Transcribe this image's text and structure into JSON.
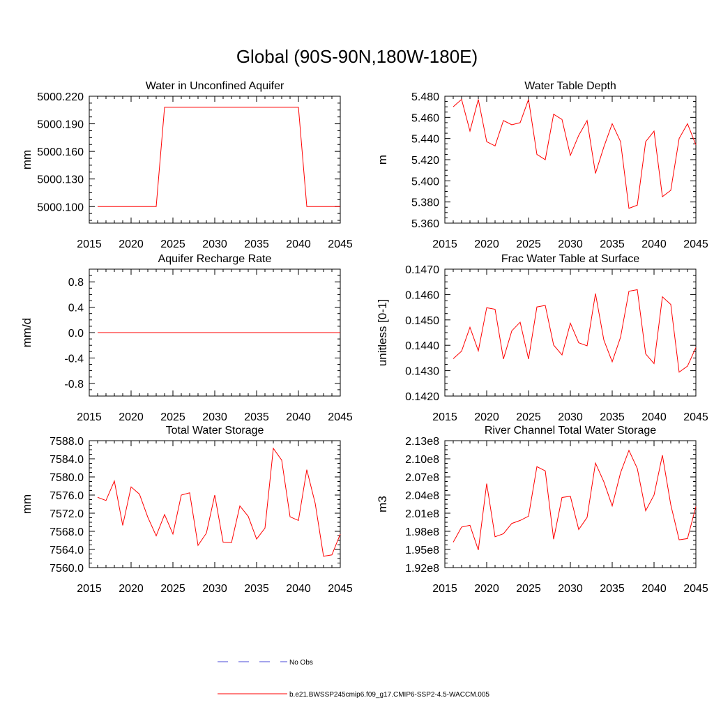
{
  "figure": {
    "title": "Global (90S-90N,180W-180E)"
  },
  "legend": {
    "no_obs_label": "No Obs",
    "no_obs_color": "#4a4ad8",
    "case_label": "b.e21.BWSSP245cmip6.f09_g17.CMIP6-SSP2-4.5-WACCM.005",
    "case_color": "#ff0000"
  },
  "chart_data": [
    {
      "id": "unconfined-aquifer",
      "type": "line",
      "title": "Water in Unconfined Aquifer",
      "xlabel": "",
      "ylabel": "mm",
      "xlim": [
        2015,
        2045
      ],
      "ylim": [
        5000.082,
        5000.22
      ],
      "yticks": [
        5000.1,
        5000.13,
        5000.16,
        5000.19,
        5000.22
      ],
      "ytick_labels": [
        "5000.100",
        "5000.130",
        "5000.160",
        "5000.190",
        "5000.220"
      ],
      "xticks": [
        2015,
        2020,
        2025,
        2030,
        2035,
        2040,
        2045
      ],
      "xtick_labels": [
        "2015",
        "2020",
        "2025",
        "2030",
        "2035",
        "2040",
        "2045"
      ],
      "color": "#ff0000",
      "x": [
        2016,
        2017,
        2018,
        2019,
        2020,
        2021,
        2022,
        2023,
        2024,
        2025,
        2026,
        2027,
        2028,
        2029,
        2030,
        2031,
        2032,
        2033,
        2034,
        2035,
        2036,
        2037,
        2038,
        2039,
        2040,
        2041,
        2042,
        2043,
        2044,
        2045
      ],
      "y": [
        5000.1,
        5000.1,
        5000.1,
        5000.1,
        5000.1,
        5000.1,
        5000.1,
        5000.1,
        5000.208,
        5000.208,
        5000.208,
        5000.208,
        5000.208,
        5000.208,
        5000.208,
        5000.208,
        5000.208,
        5000.208,
        5000.208,
        5000.208,
        5000.208,
        5000.208,
        5000.208,
        5000.208,
        5000.208,
        5000.1,
        5000.1,
        5000.1,
        5000.1,
        5000.1
      ]
    },
    {
      "id": "water-table-depth",
      "type": "line",
      "title": "Water Table Depth",
      "xlabel": "",
      "ylabel": "m",
      "xlim": [
        2015,
        2045
      ],
      "ylim": [
        5.36,
        5.48
      ],
      "yticks": [
        5.36,
        5.38,
        5.4,
        5.42,
        5.44,
        5.46,
        5.48
      ],
      "ytick_labels": [
        "5.360",
        "5.380",
        "5.400",
        "5.420",
        "5.440",
        "5.460",
        "5.480"
      ],
      "xticks": [
        2015,
        2020,
        2025,
        2030,
        2035,
        2040,
        2045
      ],
      "xtick_labels": [
        "2015",
        "2020",
        "2025",
        "2030",
        "2035",
        "2040",
        "2045"
      ],
      "color": "#ff0000",
      "x": [
        2016,
        2017,
        2018,
        2019,
        2020,
        2021,
        2022,
        2023,
        2024,
        2025,
        2026,
        2027,
        2028,
        2029,
        2030,
        2031,
        2032,
        2033,
        2034,
        2035,
        2036,
        2037,
        2038,
        2039,
        2040,
        2041,
        2042,
        2043,
        2044,
        2045
      ],
      "y": [
        5.47,
        5.477,
        5.447,
        5.477,
        5.437,
        5.433,
        5.457,
        5.453,
        5.455,
        5.477,
        5.425,
        5.42,
        5.463,
        5.458,
        5.424,
        5.443,
        5.457,
        5.407,
        5.432,
        5.454,
        5.437,
        5.374,
        5.377,
        5.437,
        5.447,
        5.385,
        5.391,
        5.44,
        5.454,
        5.434
      ]
    },
    {
      "id": "aquifer-recharge",
      "type": "line",
      "title": "Aquifer Recharge Rate",
      "xlabel": "",
      "ylabel": "mm/d",
      "xlim": [
        2015,
        2045
      ],
      "ylim": [
        -1.0,
        1.0
      ],
      "yticks": [
        -0.8,
        -0.4,
        0.0,
        0.4,
        0.8
      ],
      "ytick_labels": [
        "-0.8",
        "-0.4",
        "0.0",
        "0.4",
        "0.8"
      ],
      "xticks": [
        2015,
        2020,
        2025,
        2030,
        2035,
        2040,
        2045
      ],
      "xtick_labels": [
        "2015",
        "2020",
        "2025",
        "2030",
        "2035",
        "2040",
        "2045"
      ],
      "color": "#ff0000",
      "x": [
        2016,
        2017,
        2018,
        2019,
        2020,
        2021,
        2022,
        2023,
        2024,
        2025,
        2026,
        2027,
        2028,
        2029,
        2030,
        2031,
        2032,
        2033,
        2034,
        2035,
        2036,
        2037,
        2038,
        2039,
        2040,
        2041,
        2042,
        2043,
        2044,
        2045
      ],
      "y": [
        0,
        0,
        0,
        0,
        0,
        0,
        0,
        0,
        0,
        0,
        0,
        0,
        0,
        0,
        0,
        0,
        0,
        0,
        0,
        0,
        0,
        0,
        0,
        0,
        0,
        0,
        0,
        0,
        0,
        0
      ]
    },
    {
      "id": "frac-water-table",
      "type": "line",
      "title": "Frac Water Table at Surface",
      "xlabel": "",
      "ylabel": "unitless [0-1]",
      "xlim": [
        2015,
        2045
      ],
      "ylim": [
        0.142,
        0.147
      ],
      "yticks": [
        0.142,
        0.143,
        0.144,
        0.145,
        0.146,
        0.147
      ],
      "ytick_labels": [
        "0.1420",
        "0.1430",
        "0.1440",
        "0.1450",
        "0.1460",
        "0.1470"
      ],
      "xticks": [
        2015,
        2020,
        2025,
        2030,
        2035,
        2040,
        2045
      ],
      "xtick_labels": [
        "2015",
        "2020",
        "2025",
        "2030",
        "2035",
        "2040",
        "2045"
      ],
      "color": "#ff0000",
      "x": [
        2016,
        2017,
        2018,
        2019,
        2020,
        2021,
        2022,
        2023,
        2024,
        2025,
        2026,
        2027,
        2028,
        2029,
        2030,
        2031,
        2032,
        2033,
        2034,
        2035,
        2036,
        2037,
        2038,
        2039,
        2040,
        2041,
        2042,
        2043,
        2044,
        2045
      ],
      "y": [
        0.14347,
        0.14377,
        0.14471,
        0.14378,
        0.14548,
        0.14542,
        0.14346,
        0.14457,
        0.14491,
        0.14346,
        0.14551,
        0.14557,
        0.14401,
        0.14362,
        0.14487,
        0.1441,
        0.14398,
        0.14604,
        0.14421,
        0.14335,
        0.14432,
        0.14613,
        0.14619,
        0.14366,
        0.14328,
        0.14591,
        0.14561,
        0.14294,
        0.14318,
        0.14391
      ]
    },
    {
      "id": "total-water-storage",
      "type": "line",
      "title": "Total Water Storage",
      "xlabel": "",
      "ylabel": "mm",
      "xlim": [
        2015,
        2045
      ],
      "ylim": [
        7560.0,
        7588.0
      ],
      "yticks": [
        7560,
        7564,
        7568,
        7572,
        7576,
        7580,
        7584,
        7588
      ],
      "ytick_labels": [
        "7560.0",
        "7564.0",
        "7568.0",
        "7572.0",
        "7576.0",
        "7580.0",
        "7584.0",
        "7588.0"
      ],
      "xticks": [
        2015,
        2020,
        2025,
        2030,
        2035,
        2040,
        2045
      ],
      "xtick_labels": [
        "2015",
        "2020",
        "2025",
        "2030",
        "2035",
        "2040",
        "2045"
      ],
      "color": "#ff0000",
      "x": [
        2016,
        2017,
        2018,
        2019,
        2020,
        2021,
        2022,
        2023,
        2024,
        2025,
        2026,
        2027,
        2028,
        2029,
        2030,
        2031,
        2032,
        2033,
        2034,
        2035,
        2036,
        2037,
        2038,
        2039,
        2040,
        2041,
        2042,
        2043,
        2044,
        2045
      ],
      "y": [
        7575.5,
        7574.8,
        7579.1,
        7569.3,
        7577.8,
        7576.2,
        7571.1,
        7567.0,
        7571.7,
        7567.4,
        7576.0,
        7576.5,
        7564.9,
        7567.6,
        7576.0,
        7565.6,
        7565.5,
        7573.6,
        7571.3,
        7566.3,
        7568.7,
        7586.3,
        7583.7,
        7571.2,
        7570.4,
        7581.6,
        7574.2,
        7562.5,
        7562.8,
        7567.4
      ]
    },
    {
      "id": "river-channel-storage",
      "type": "line",
      "title": "River Channel Total Water Storage",
      "xlabel": "",
      "ylabel": "m3",
      "xlim": [
        2015,
        2045
      ],
      "ylim": [
        192000000.0,
        213000000.0
      ],
      "yticks": [
        192000000.0,
        195000000.0,
        198000000.0,
        201000000.0,
        204000000.0,
        207000000.0,
        210000000.0,
        213000000.0
      ],
      "ytick_labels": [
        "1.92e8",
        "1.95e8",
        "1.98e8",
        "2.01e8",
        "2.04e8",
        "2.07e8",
        "2.10e8",
        "2.13e8"
      ],
      "xticks": [
        2015,
        2020,
        2025,
        2030,
        2035,
        2040,
        2045
      ],
      "xtick_labels": [
        "2015",
        "2020",
        "2025",
        "2030",
        "2035",
        "2040",
        "2045"
      ],
      "color": "#ff0000",
      "x": [
        2016,
        2017,
        2018,
        2019,
        2020,
        2021,
        2022,
        2023,
        2024,
        2025,
        2026,
        2027,
        2028,
        2029,
        2030,
        2031,
        2032,
        2033,
        2034,
        2035,
        2036,
        2037,
        2038,
        2039,
        2040,
        2041,
        2042,
        2043,
        2044,
        2045
      ],
      "y": [
        196200000.0,
        198700000.0,
        199000000.0,
        194900000.0,
        205900000.0,
        197100000.0,
        197600000.0,
        199300000.0,
        199800000.0,
        200500000.0,
        208700000.0,
        208000000.0,
        196700000.0,
        203600000.0,
        203800000.0,
        198300000.0,
        200300000.0,
        209300000.0,
        206200000.0,
        202200000.0,
        207700000.0,
        211400000.0,
        208400000.0,
        201400000.0,
        204000000.0,
        210600000.0,
        202400000.0,
        196600000.0,
        196800000.0,
        202100000.0
      ]
    }
  ]
}
